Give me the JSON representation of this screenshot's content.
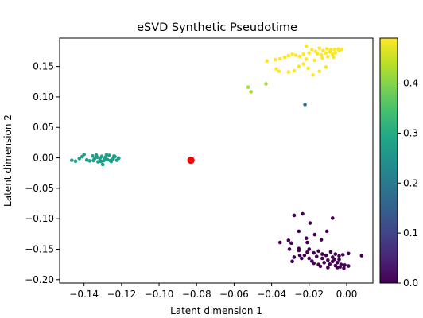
{
  "chart_data": {
    "type": "scatter",
    "title": "eSVD Synthetic Pseudotime",
    "xlabel": "Latent dimension 1",
    "ylabel": "Latent dimension 2",
    "xlim": [
      -0.153,
      0.014
    ],
    "ylim": [
      -0.2055,
      0.1965
    ],
    "xticks": [
      -0.14,
      -0.12,
      -0.1,
      -0.08,
      -0.06,
      -0.04,
      -0.02,
      0.0
    ],
    "xtick_labels": [
      "−0.14",
      "−0.12",
      "−0.10",
      "−0.08",
      "−0.06",
      "−0.04",
      "−0.02",
      "0.00"
    ],
    "yticks": [
      -0.2,
      -0.15,
      -0.1,
      -0.05,
      0.0,
      0.05,
      0.1,
      0.15
    ],
    "ytick_labels": [
      "−0.20",
      "−0.15",
      "−0.10",
      "−0.05",
      "0.00",
      "0.05",
      "0.10",
      "0.15"
    ],
    "colorbar": {
      "colormap": "viridis",
      "range": [
        0,
        0.49
      ],
      "ticks": [
        0.0,
        0.1,
        0.2,
        0.3,
        0.4
      ],
      "tick_labels": [
        "0.0",
        "0.1",
        "0.2",
        "0.3",
        "0.4"
      ]
    },
    "grid": false,
    "clusters": [
      {
        "pseudotime": 0.49,
        "color": "#fde725",
        "points": [
          [
            -0.0215,
            0.1835
          ],
          [
            -0.0185,
            0.1775
          ],
          [
            -0.0165,
            0.1745
          ],
          [
            -0.0145,
            0.18
          ],
          [
            -0.0125,
            0.176
          ],
          [
            -0.0105,
            0.179
          ],
          [
            -0.0085,
            0.1775
          ],
          [
            -0.0065,
            0.178
          ],
          [
            -0.0045,
            0.1785
          ],
          [
            -0.0025,
            0.178
          ],
          [
            -0.0155,
            0.1705
          ],
          [
            -0.0135,
            0.169
          ],
          [
            -0.011,
            0.172
          ],
          [
            -0.009,
            0.174
          ],
          [
            -0.0075,
            0.17
          ],
          [
            -0.006,
            0.1725
          ],
          [
            -0.004,
            0.176
          ],
          [
            -0.02,
            0.172
          ],
          [
            -0.023,
            0.17
          ],
          [
            -0.025,
            0.1665
          ],
          [
            -0.027,
            0.1685
          ],
          [
            -0.029,
            0.17
          ],
          [
            -0.031,
            0.1675
          ],
          [
            -0.033,
            0.165
          ],
          [
            -0.0355,
            0.1625
          ],
          [
            -0.038,
            0.161
          ],
          [
            -0.0425,
            0.159
          ],
          [
            -0.0375,
            0.146
          ],
          [
            -0.036,
            0.142
          ],
          [
            -0.031,
            0.141
          ],
          [
            -0.028,
            0.143
          ],
          [
            -0.0255,
            0.15
          ],
          [
            -0.023,
            0.154
          ],
          [
            -0.0205,
            0.147
          ],
          [
            -0.018,
            0.136
          ],
          [
            -0.0145,
            0.142
          ],
          [
            -0.011,
            0.149
          ],
          [
            -0.013,
            0.164
          ],
          [
            -0.01,
            0.166
          ],
          [
            -0.007,
            0.165
          ],
          [
            -0.017,
            0.16
          ],
          [
            -0.0215,
            0.162
          ]
        ]
      },
      {
        "pseudotime": 0.4,
        "color": "#a5db36",
        "points": [
          [
            -0.0525,
            0.116
          ],
          [
            -0.051,
            0.1085
          ],
          [
            -0.043,
            0.1215
          ]
        ]
      },
      {
        "pseudotime": 0.21,
        "color": "#2a788e",
        "points": [
          [
            -0.0222,
            0.0875
          ]
        ]
      },
      {
        "pseudotime": 0.27,
        "color": "#1f9e89",
        "points": [
          [
            -0.1465,
            -0.004
          ],
          [
            -0.1445,
            -0.0055
          ],
          [
            -0.1425,
            -0.001
          ],
          [
            -0.141,
            0.002
          ],
          [
            -0.14,
            0.0055
          ],
          [
            -0.1385,
            -0.0035
          ],
          [
            -0.137,
            -0.005
          ],
          [
            -0.1355,
            0.003
          ],
          [
            -0.1345,
            -0.002
          ],
          [
            -0.1335,
            0.0045
          ],
          [
            -0.1325,
            -0.0065
          ],
          [
            -0.1315,
            -0.001
          ],
          [
            -0.1305,
            0.0025
          ],
          [
            -0.1295,
            -0.0045
          ],
          [
            -0.1285,
            0.001
          ],
          [
            -0.1275,
            -0.003
          ],
          [
            -0.1265,
            0.004
          ],
          [
            -0.1255,
            -0.006
          ],
          [
            -0.1245,
            -0.0015
          ],
          [
            -0.1235,
            0.002
          ],
          [
            -0.1225,
            -0.004
          ],
          [
            -0.1215,
            -0.0005
          ],
          [
            -0.13,
            -0.011
          ],
          [
            -0.133,
            0.001
          ],
          [
            -0.129,
            -0.002
          ],
          [
            -0.126,
            -0.0045
          ],
          [
            -0.124,
            0.003
          ],
          [
            -0.128,
            0.005
          ],
          [
            -0.135,
            -0.0045
          ],
          [
            -0.131,
            -0.006
          ]
        ]
      },
      {
        "pseudotime": 0.0,
        "color": "#440154",
        "points": [
          [
            -0.028,
            -0.0945
          ],
          [
            -0.0235,
            -0.092
          ],
          [
            -0.0195,
            -0.107
          ],
          [
            -0.0075,
            -0.099
          ],
          [
            -0.0105,
            -0.1205
          ],
          [
            -0.0255,
            -0.1205
          ],
          [
            -0.017,
            -0.126
          ],
          [
            -0.0215,
            -0.132
          ],
          [
            -0.031,
            -0.1355
          ],
          [
            -0.0355,
            -0.139
          ],
          [
            -0.0295,
            -0.14
          ],
          [
            -0.021,
            -0.139
          ],
          [
            -0.0135,
            -0.1345
          ],
          [
            -0.0255,
            -0.149
          ],
          [
            -0.0305,
            -0.15
          ],
          [
            -0.0255,
            -0.152
          ],
          [
            -0.021,
            -0.155
          ],
          [
            -0.0175,
            -0.156
          ],
          [
            -0.015,
            -0.153
          ],
          [
            -0.011,
            -0.16
          ],
          [
            -0.0085,
            -0.1545
          ],
          [
            -0.006,
            -0.158
          ],
          [
            -0.004,
            -0.161
          ],
          [
            -0.002,
            -0.159
          ],
          [
            0.001,
            -0.157
          ],
          [
            -0.016,
            -0.162
          ],
          [
            -0.013,
            -0.165
          ],
          [
            -0.01,
            -0.168
          ],
          [
            -0.0075,
            -0.17
          ],
          [
            -0.005,
            -0.172
          ],
          [
            -0.003,
            -0.175
          ],
          [
            -0.001,
            -0.176
          ],
          [
            0.001,
            -0.1775
          ],
          [
            -0.012,
            -0.172
          ],
          [
            -0.009,
            -0.1745
          ],
          [
            -0.006,
            -0.177
          ],
          [
            -0.0035,
            -0.179
          ],
          [
            -0.014,
            -0.178
          ],
          [
            -0.0175,
            -0.173
          ],
          [
            -0.02,
            -0.165
          ],
          [
            -0.0225,
            -0.16
          ],
          [
            -0.025,
            -0.16
          ],
          [
            -0.028,
            -0.163
          ],
          [
            -0.029,
            -0.17
          ],
          [
            -0.0075,
            -0.163
          ],
          [
            -0.015,
            -0.175
          ],
          [
            -0.01,
            -0.18
          ],
          [
            -0.005,
            -0.18
          ],
          [
            -0.0015,
            -0.181
          ],
          [
            0.008,
            -0.1605
          ],
          [
            -0.02,
            -0.15
          ],
          [
            -0.013,
            -0.158
          ],
          [
            -0.0065,
            -0.1665
          ],
          [
            -0.0185,
            -0.1695
          ],
          [
            -0.024,
            -0.165
          ],
          [
            -0.004,
            -0.167
          ]
        ]
      }
    ],
    "highlight": {
      "point": [
        -0.083,
        -0.004
      ],
      "color": "#ff0000"
    }
  }
}
